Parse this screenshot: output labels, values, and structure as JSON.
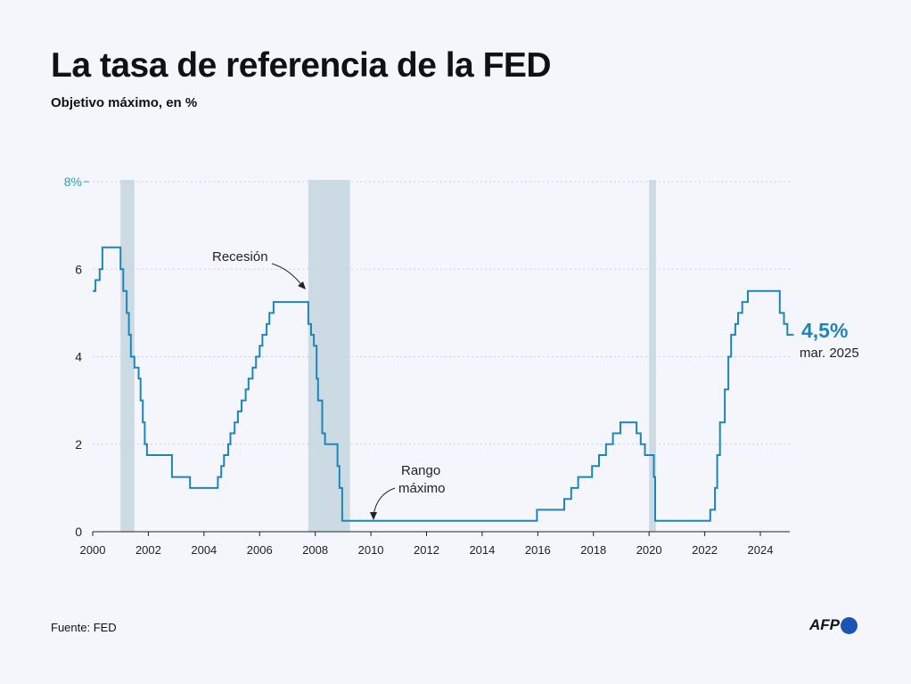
{
  "header": {
    "title": "La tasa de referencia de la FED",
    "subtitle": "Objetivo máximo, en %"
  },
  "footer": {
    "source": "Fuente: FED",
    "logo_text": "AFP"
  },
  "colors": {
    "line": "#1d86b8",
    "recession": "#ccdbe3",
    "grid": "#c8d4e0",
    "accent": "#2a9ec0",
    "background": "#f4f6fb"
  },
  "chart_data": {
    "type": "line",
    "step": true,
    "title": "La tasa de referencia de la FED",
    "subtitle": "Objetivo máximo, en %",
    "xlim": [
      2000,
      2025
    ],
    "ylim": [
      0,
      8
    ],
    "x_ticks": [
      "2000",
      "2002",
      "2004",
      "2006",
      "2008",
      "2010",
      "2012",
      "2014",
      "2016",
      "2018",
      "2020",
      "2022",
      "2024"
    ],
    "y_ticks": [
      {
        "value": 8,
        "label": "8%"
      },
      {
        "value": 6,
        "label": "6"
      },
      {
        "value": 4,
        "label": "4"
      },
      {
        "value": 2,
        "label": "2"
      },
      {
        "value": 0,
        "label": "0"
      }
    ],
    "grid": "horizontal dotted",
    "recessions": [
      {
        "start": 2001.0,
        "end": 2001.5
      },
      {
        "start": 2007.75,
        "end": 2009.25
      },
      {
        "start": 2020.0,
        "end": 2020.25
      }
    ],
    "series": [
      {
        "points": [
          [
            2000.0,
            5.5
          ],
          [
            2000.1,
            5.75
          ],
          [
            2000.25,
            6.0
          ],
          [
            2000.35,
            6.5
          ],
          [
            2001.0,
            6.0
          ],
          [
            2001.1,
            5.5
          ],
          [
            2001.22,
            5.0
          ],
          [
            2001.3,
            4.5
          ],
          [
            2001.37,
            4.0
          ],
          [
            2001.5,
            3.75
          ],
          [
            2001.65,
            3.5
          ],
          [
            2001.72,
            3.0
          ],
          [
            2001.8,
            2.5
          ],
          [
            2001.87,
            2.0
          ],
          [
            2001.95,
            1.75
          ],
          [
            2002.85,
            1.25
          ],
          [
            2003.5,
            1.0
          ],
          [
            2004.5,
            1.25
          ],
          [
            2004.62,
            1.5
          ],
          [
            2004.72,
            1.75
          ],
          [
            2004.87,
            2.0
          ],
          [
            2004.95,
            2.25
          ],
          [
            2005.1,
            2.5
          ],
          [
            2005.22,
            2.75
          ],
          [
            2005.35,
            3.0
          ],
          [
            2005.5,
            3.25
          ],
          [
            2005.6,
            3.5
          ],
          [
            2005.75,
            3.75
          ],
          [
            2005.87,
            4.0
          ],
          [
            2006.0,
            4.25
          ],
          [
            2006.1,
            4.5
          ],
          [
            2006.25,
            4.75
          ],
          [
            2006.35,
            5.0
          ],
          [
            2006.5,
            5.25
          ],
          [
            2007.75,
            4.75
          ],
          [
            2007.85,
            4.5
          ],
          [
            2007.95,
            4.25
          ],
          [
            2008.05,
            3.5
          ],
          [
            2008.1,
            3.0
          ],
          [
            2008.25,
            2.25
          ],
          [
            2008.35,
            2.0
          ],
          [
            2008.8,
            1.5
          ],
          [
            2008.87,
            1.0
          ],
          [
            2008.97,
            0.25
          ],
          [
            2015.97,
            0.5
          ],
          [
            2016.95,
            0.75
          ],
          [
            2017.2,
            1.0
          ],
          [
            2017.45,
            1.25
          ],
          [
            2017.95,
            1.5
          ],
          [
            2018.2,
            1.75
          ],
          [
            2018.45,
            2.0
          ],
          [
            2018.7,
            2.25
          ],
          [
            2018.97,
            2.5
          ],
          [
            2019.55,
            2.25
          ],
          [
            2019.7,
            2.0
          ],
          [
            2019.85,
            1.75
          ],
          [
            2020.17,
            1.25
          ],
          [
            2020.22,
            0.25
          ],
          [
            2022.2,
            0.5
          ],
          [
            2022.37,
            1.0
          ],
          [
            2022.45,
            1.75
          ],
          [
            2022.55,
            2.5
          ],
          [
            2022.72,
            3.25
          ],
          [
            2022.85,
            4.0
          ],
          [
            2022.95,
            4.5
          ],
          [
            2023.1,
            4.75
          ],
          [
            2023.2,
            5.0
          ],
          [
            2023.35,
            5.25
          ],
          [
            2023.55,
            5.5
          ],
          [
            2024.7,
            5.0
          ],
          [
            2024.85,
            4.75
          ],
          [
            2024.97,
            4.5
          ],
          [
            2025.2,
            4.5
          ]
        ]
      }
    ],
    "annotations": [
      {
        "text": "Recesión"
      },
      {
        "text_lines": [
          "Rango",
          "máximo"
        ]
      }
    ],
    "last_value": {
      "value": "4,5%",
      "date": "mar. 2025"
    }
  }
}
